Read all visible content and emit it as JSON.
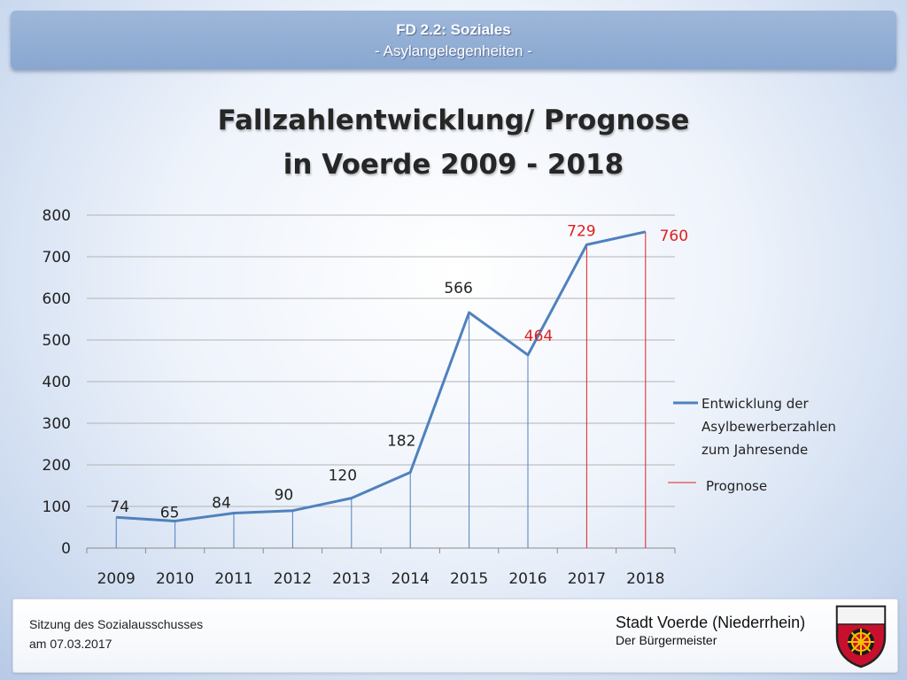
{
  "header": {
    "line1": "FD 2.2: Soziales",
    "line2": "- Asylangelegenheiten -"
  },
  "title": {
    "line1": "Fallzahlentwicklung/ Prognose",
    "line2": "in Voerde 2009 - 2018"
  },
  "chart_data": {
    "type": "line",
    "categories": [
      "2009",
      "2010",
      "2011",
      "2012",
      "2013",
      "2014",
      "2015",
      "2016",
      "2017",
      "2018"
    ],
    "series": [
      {
        "name": "Entwicklung der Asylbewerberzahlen zum Jahresende",
        "values": [
          74,
          65,
          84,
          90,
          120,
          182,
          566,
          464,
          729,
          760
        ],
        "color": "#4f81bd"
      }
    ],
    "forecast_from_index": 7,
    "forecast_label": "Prognose",
    "forecast_color": "#e02020",
    "y_ticks": [
      "0",
      "100",
      "200",
      "300",
      "400",
      "500",
      "600",
      "700",
      "800"
    ],
    "ylim": [
      0,
      800
    ],
    "grid": true,
    "legend": "right",
    "data_labels": [
      "74",
      "65",
      "84",
      "90",
      "120",
      "182",
      "566",
      "464",
      "729",
      "760"
    ],
    "legend_lines": [
      "Entwicklung der",
      "Asylbewerberzahlen",
      "zum Jahresende"
    ]
  },
  "footer": {
    "line1": "Sitzung des Sozialausschusses",
    "line2": "am 07.03.2017",
    "org_name": "Stadt Voerde (Niederrhein)",
    "org_sub": "Der Bürgermeister"
  }
}
